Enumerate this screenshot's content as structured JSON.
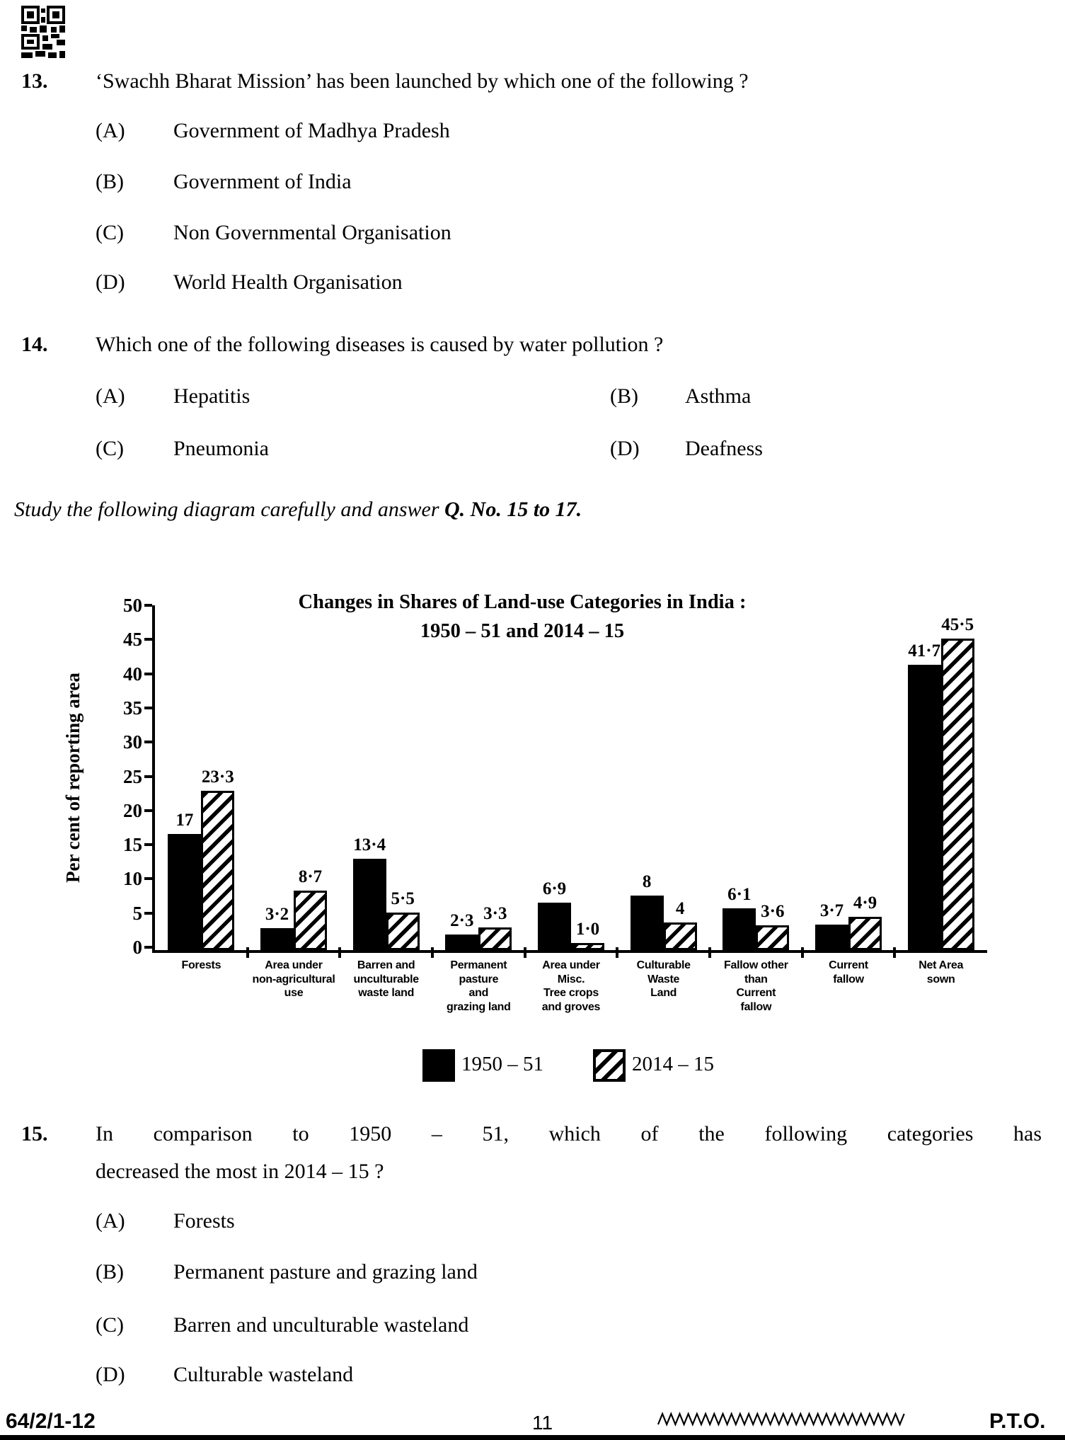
{
  "page": {
    "instruction": {
      "prefix": "Study the following diagram carefully and answer ",
      "bold": "Q. No. 15 to 17."
    },
    "footer": {
      "code": "64/2/1-12",
      "page_number": "11",
      "pto": "P.T.O."
    }
  },
  "questions": {
    "q13": {
      "number": "13.",
      "text": "‘Swachh Bharat Mission’ has been launched by which one of the following ?",
      "options": [
        {
          "label": "(A)",
          "text": "Government of Madhya Pradesh"
        },
        {
          "label": "(B)",
          "text": "Government of India"
        },
        {
          "label": "(C)",
          "text": "Non Governmental Organisation"
        },
        {
          "label": "(D)",
          "text": "World Health Organisation"
        }
      ]
    },
    "q14": {
      "number": "14.",
      "text": "Which one of the following diseases is caused by water pollution ?",
      "options": [
        {
          "label": "(A)",
          "text": "Hepatitis"
        },
        {
          "label": "(B)",
          "text": "Asthma"
        },
        {
          "label": "(C)",
          "text": "Pneumonia"
        },
        {
          "label": "(D)",
          "text": "Deafness"
        }
      ]
    },
    "q15": {
      "number": "15.",
      "line1": "In comparison to 1950 – 51, which of the following categories has",
      "line2": "decreased the most in 2014 – 15 ?",
      "options": [
        {
          "label": "(A)",
          "text": "Forests"
        },
        {
          "label": "(B)",
          "text": "Permanent pasture and grazing land"
        },
        {
          "label": "(C)",
          "text": "Barren and unculturable wasteland"
        },
        {
          "label": "(D)",
          "text": "Culturable wasteland"
        }
      ]
    }
  },
  "chart_data": {
    "type": "bar",
    "title": "Changes in Shares of Land-use Categories in India : 1950 – 51 and 2014 – 15",
    "title_line1": "Changes in Shares of Land-use Categories in India :",
    "title_line2": "1950 – 51 and 2014 – 15",
    "ylabel": "Per cent of reporting area",
    "xlabel": "",
    "ylim": [
      0,
      50
    ],
    "yticks": [
      0,
      5,
      10,
      15,
      20,
      25,
      30,
      35,
      40,
      45,
      50
    ],
    "grid": false,
    "legend_position": "bottom",
    "categories": [
      "Forests",
      "Area under non-agricultural use",
      "Barren and unculturable waste land",
      "Permanent pasture and grazing land",
      "Area under Misc. Tree crops and groves",
      "Culturable Waste Land",
      "Fallow other than Current fallow",
      "Current fallow",
      "Net Area sown"
    ],
    "category_lines": [
      [
        "Forests"
      ],
      [
        "Area under",
        "non-agricultural",
        "use"
      ],
      [
        "Barren and",
        "unculturable",
        "waste land"
      ],
      [
        "Permanent",
        "pasture",
        "and",
        "grazing land"
      ],
      [
        "Area under",
        "Misc.",
        "Tree crops",
        "and groves"
      ],
      [
        "Culturable",
        "Waste",
        "Land"
      ],
      [
        "Fallow other",
        "than",
        "Current",
        "fallow"
      ],
      [
        "Current",
        "fallow"
      ],
      [
        "Net Area",
        "sown"
      ]
    ],
    "series": [
      {
        "name": "1950 – 51",
        "style": "solid",
        "values": [
          17,
          3.2,
          13.4,
          2.3,
          6.9,
          8,
          6.1,
          3.7,
          41.7
        ],
        "labels": [
          "17",
          "3·2",
          "13·4",
          "2·3",
          "6·9",
          "8",
          "6·1",
          "3·7",
          "41·7"
        ]
      },
      {
        "name": "2014 – 15",
        "style": "hatched",
        "values": [
          23.3,
          8.7,
          5.5,
          3.3,
          1.0,
          4,
          3.6,
          4.9,
          45.5
        ],
        "labels": [
          "23·3",
          "8·7",
          "5·5",
          "3·3",
          "1·0",
          "4",
          "3·6",
          "4·9",
          "45·5"
        ]
      }
    ]
  }
}
